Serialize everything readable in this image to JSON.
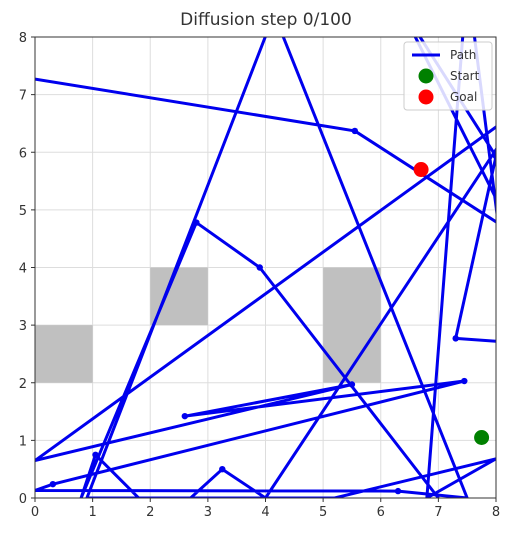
{
  "chart_data": {
    "type": "line",
    "title": "Diffusion step 0/100",
    "xlabel": "",
    "ylabel": "",
    "xlim": [
      0,
      8
    ],
    "ylim": [
      0,
      8
    ],
    "xticks": [
      "0",
      "1",
      "2",
      "3",
      "4",
      "5",
      "6",
      "7",
      "8"
    ],
    "yticks": [
      "0",
      "1",
      "2",
      "3",
      "4",
      "5",
      "6",
      "7",
      "8"
    ],
    "grid": true,
    "legend_position": "top-right",
    "obstacles": [
      {
        "x": 0,
        "y": 2,
        "w": 1,
        "h": 1
      },
      {
        "x": 2,
        "y": 3,
        "w": 1,
        "h": 1
      },
      {
        "x": 5,
        "y": 2,
        "w": 1,
        "h": 2
      }
    ],
    "series": [
      {
        "name": "Path",
        "color": "#0000ee",
        "points": [
          [
            0,
            7.27
          ],
          [
            5.55,
            6.37
          ],
          [
            8.3,
            4.6
          ],
          [
            6.3,
            8.6
          ],
          [
            8,
            5.93
          ],
          [
            7.3,
            2.77
          ],
          [
            8.3,
            2.7
          ],
          [
            7.5,
            9.0
          ],
          [
            6.8,
            0.0
          ],
          [
            8,
            0.68
          ],
          [
            5.2,
            0.0
          ],
          [
            0.9,
            0.0
          ],
          [
            4.15,
            8.4
          ],
          [
            7.5,
            0.0
          ],
          [
            6.3,
            0.12
          ],
          [
            0.0,
            0.13
          ],
          [
            0.31,
            0.24
          ],
          [
            7.45,
            2.03
          ],
          [
            2.6,
            1.42
          ],
          [
            5.5,
            1.97
          ],
          [
            0.0,
            0.65
          ],
          [
            8.5,
            6.8
          ],
          [
            4.0,
            0.0
          ],
          [
            3.25,
            0.5
          ],
          [
            2.7,
            0.0
          ],
          [
            1.8,
            0.0
          ],
          [
            1.05,
            0.75
          ],
          [
            0.8,
            0.0
          ],
          [
            2.8,
            4.78
          ],
          [
            3.9,
            4.0
          ],
          [
            7.0,
            0.0
          ]
        ],
        "markers": [
          [
            5.55,
            6.37
          ],
          [
            8,
            5.93
          ],
          [
            7.3,
            2.77
          ],
          [
            6.3,
            0.12
          ],
          [
            0.31,
            0.24
          ],
          [
            7.45,
            2.03
          ],
          [
            2.6,
            1.42
          ],
          [
            5.5,
            1.97
          ],
          [
            3.25,
            0.5
          ],
          [
            1.05,
            0.75
          ],
          [
            2.8,
            4.78
          ],
          [
            3.9,
            4.0
          ]
        ]
      },
      {
        "name": "Start",
        "color": "#008000",
        "points": [
          [
            7.75,
            1.05
          ]
        ]
      },
      {
        "name": "Goal",
        "color": "#ff0000",
        "points": [
          [
            6.7,
            5.7
          ]
        ]
      }
    ]
  }
}
